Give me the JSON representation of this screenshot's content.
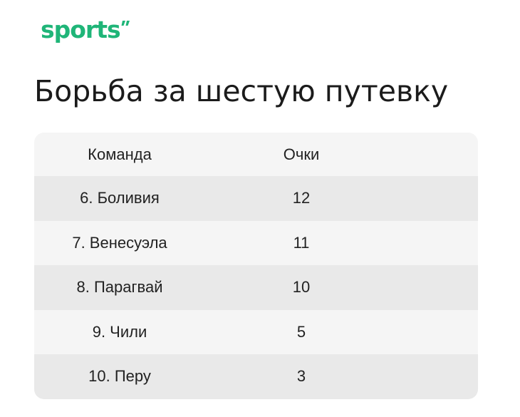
{
  "logo": {
    "text": "sports"
  },
  "title": "Борьба за шестую путевку",
  "table": {
    "headers": {
      "team": "Команда",
      "points": "Очки"
    },
    "rows": [
      {
        "team": "6. Боливия",
        "points": "12"
      },
      {
        "team": "7. Венесуэла",
        "points": "11"
      },
      {
        "team": "8. Парагвай",
        "points": "10"
      },
      {
        "team": "9. Чили",
        "points": "5"
      },
      {
        "team": "10. Перу",
        "points": "3"
      }
    ]
  },
  "colors": {
    "brand": "#1fb578",
    "row_dark": "#e9e9e9",
    "row_light": "#f5f5f5",
    "text": "#222222"
  }
}
